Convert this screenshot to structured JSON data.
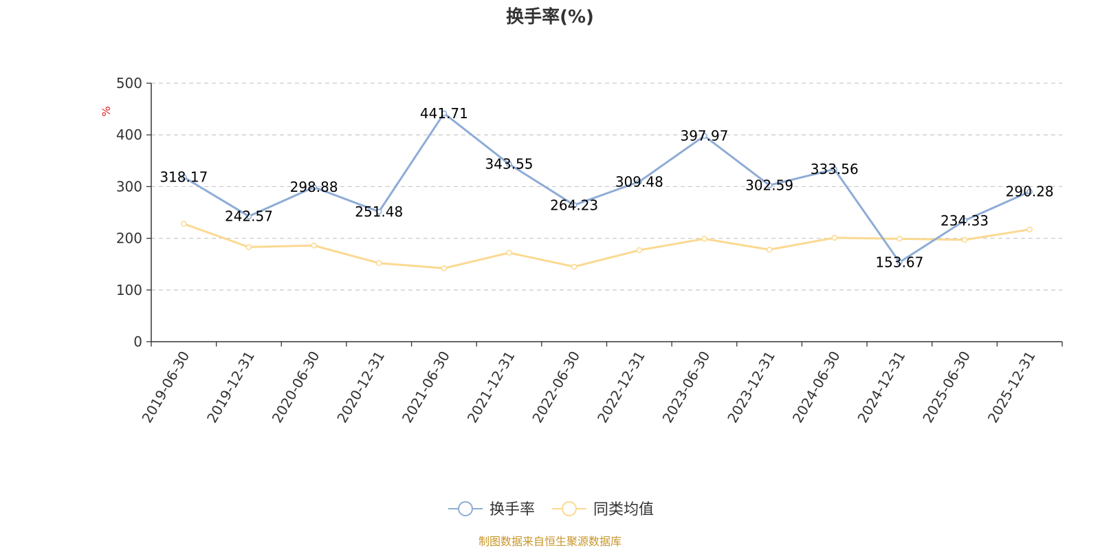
{
  "chart_data": {
    "type": "line",
    "title": "换手率(%)",
    "ylabel": "%",
    "xlabel": "",
    "ylim": [
      0,
      500
    ],
    "yticks": [
      0,
      100,
      200,
      300,
      400,
      500
    ],
    "grid": true,
    "legend_position": "bottom",
    "categories": [
      "2019-06-30",
      "2019-12-31",
      "2020-06-30",
      "2020-12-31",
      "2021-06-30",
      "2021-12-31",
      "2022-06-30",
      "2022-12-31",
      "2023-06-30",
      "2023-12-31",
      "2024-06-30",
      "2024-12-31",
      "2025-06-30",
      "2025-12-31"
    ],
    "series": [
      {
        "name": "换手率",
        "color": "#8eacd6",
        "values": [
          318.17,
          242.57,
          298.88,
          251.48,
          441.71,
          343.55,
          264.23,
          309.48,
          397.97,
          302.59,
          333.56,
          153.67,
          234.33,
          290.28
        ],
        "labels_visible": true
      },
      {
        "name": "同类均值",
        "color": "#fbd990",
        "values": [
          228,
          183,
          186,
          152,
          142,
          172,
          145,
          177,
          199,
          178,
          201,
          199,
          197,
          217
        ],
        "labels_visible": false
      }
    ],
    "source_text": "制图数据来自恒生聚源数据库",
    "source_color": "#c8962a",
    "unit_color": "#e02020"
  }
}
